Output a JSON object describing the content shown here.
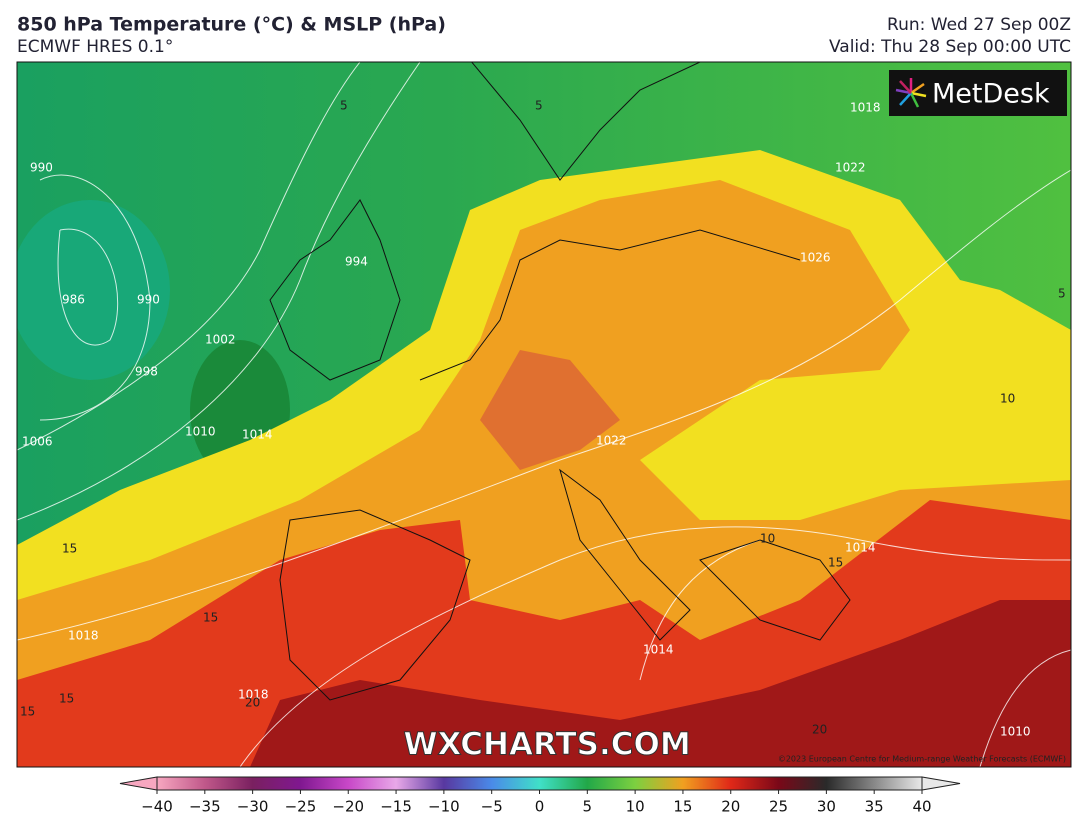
{
  "header": {
    "title": "850 hPa Temperature (°C) & MSLP (hPa)",
    "subtitle": "ECMWF HRES 0.1°",
    "run": "Run: Wed 27 Sep 00Z",
    "valid": "Valid: Thu 28 Sep 00:00 UTC"
  },
  "map": {
    "logo": "MetDesk",
    "watermark": "WXCHARTS.COM",
    "copyright": "©2023 European Centre for Medium-range Weather Forecasts (ECMWF)",
    "contour_labels": [
      "990",
      "986",
      "990",
      "998",
      "1002",
      "1006",
      "1010",
      "1014",
      "994",
      "1018",
      "1018",
      "1022",
      "1022",
      "1026",
      "1014",
      "1014",
      "1018",
      "1010",
      "5",
      "5",
      "5",
      "10",
      "10",
      "15",
      "15",
      "15",
      "15",
      "15",
      "20",
      "20"
    ]
  },
  "colorbar": {
    "ticks": [
      {
        "value": -40,
        "label": "−40"
      },
      {
        "value": -35,
        "label": "−35"
      },
      {
        "value": -30,
        "label": "−30"
      },
      {
        "value": -25,
        "label": "−25"
      },
      {
        "value": -20,
        "label": "−20"
      },
      {
        "value": -15,
        "label": "−15"
      },
      {
        "value": -10,
        "label": "−10"
      },
      {
        "value": -5,
        "label": "−5"
      },
      0,
      5,
      10,
      15,
      20,
      25,
      30,
      35,
      40
    ],
    "colors": [
      "#f7a7c0",
      "#c0588a",
      "#7a2060",
      "#801890",
      "#c848c8",
      "#e8a8e8",
      "#5838a0",
      "#4a8ae8",
      "#40e0c8",
      "#22a848",
      "#7cd040",
      "#f0a020",
      "#e02818",
      "#7a0818",
      "#2a2a2a",
      "#888888",
      "#e8e8e8"
    ]
  }
}
